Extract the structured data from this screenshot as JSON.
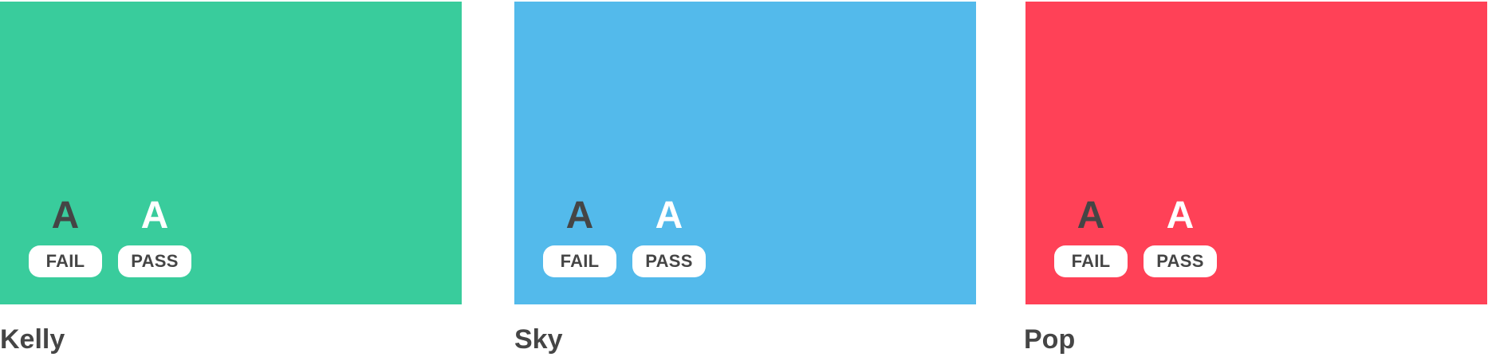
{
  "swatches": [
    {
      "name": "Kelly",
      "color": "#39CC9C",
      "dark_sample": "A",
      "light_sample": "A",
      "dark_result": "FAIL",
      "light_result": "PASS"
    },
    {
      "name": "Sky",
      "color": "#53BAEB",
      "dark_sample": "A",
      "light_sample": "A",
      "dark_result": "FAIL",
      "light_result": "PASS"
    },
    {
      "name": "Pop",
      "color": "#FF4157",
      "dark_sample": "A",
      "light_sample": "A",
      "dark_result": "FAIL",
      "light_result": "PASS"
    }
  ],
  "colors": {
    "dark_text": "#454545",
    "light_text": "#FFFFFF",
    "badge_background": "#FFFFFF"
  }
}
